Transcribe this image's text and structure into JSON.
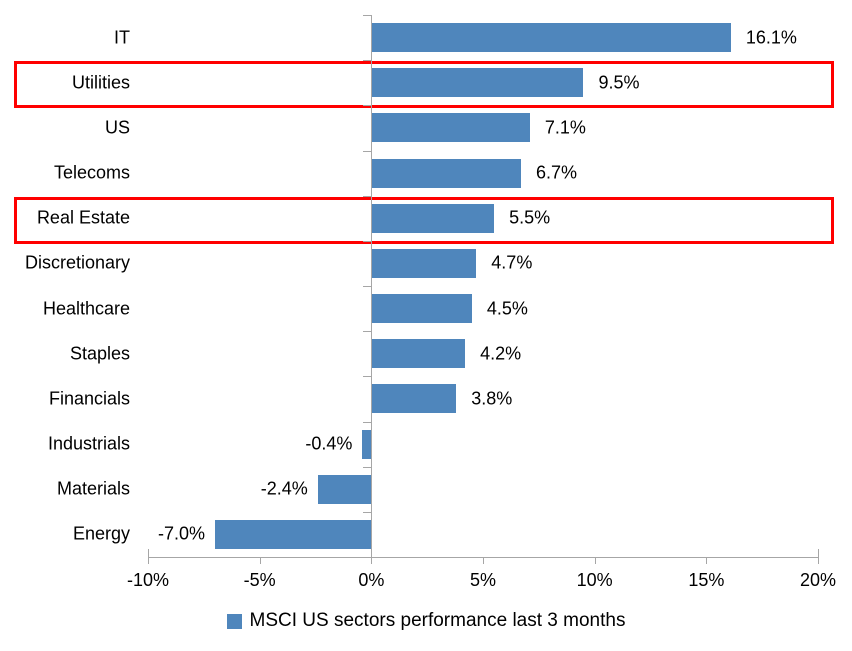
{
  "chart_data": {
    "type": "bar",
    "orientation": "horizontal",
    "categories": [
      "IT",
      "Utilities",
      "US",
      "Telecoms",
      "Real Estate",
      "Discretionary",
      "Healthcare",
      "Staples",
      "Financials",
      "Industrials",
      "Materials",
      "Energy"
    ],
    "values": [
      16.1,
      9.5,
      7.1,
      6.7,
      5.5,
      4.7,
      4.5,
      4.2,
      3.8,
      -0.4,
      -2.4,
      -7.0
    ],
    "value_labels": [
      "16.1%",
      "9.5%",
      "7.1%",
      "6.7%",
      "5.5%",
      "4.7%",
      "4.5%",
      "4.2%",
      "3.8%",
      "-0.4%",
      "-2.4%",
      "-7.0%"
    ],
    "x_ticks": [
      -10,
      -5,
      0,
      5,
      10,
      15,
      20
    ],
    "x_tick_labels": [
      "-10%",
      "-5%",
      "0%",
      "5%",
      "10%",
      "15%",
      "20%"
    ],
    "xlim": [
      -10,
      20
    ],
    "legend_label": "MSCI US sectors performance last 3 months",
    "highlighted_categories": [
      "Utilities",
      "Real Estate"
    ],
    "colors": {
      "bar": "#4f86bc",
      "axis": "#a6a6a6",
      "highlight": "#ff0000",
      "text": "#000000"
    },
    "layout_hints": {
      "grid": false,
      "legend_position": "bottom-center",
      "value_labels_outside_bars": true
    }
  }
}
